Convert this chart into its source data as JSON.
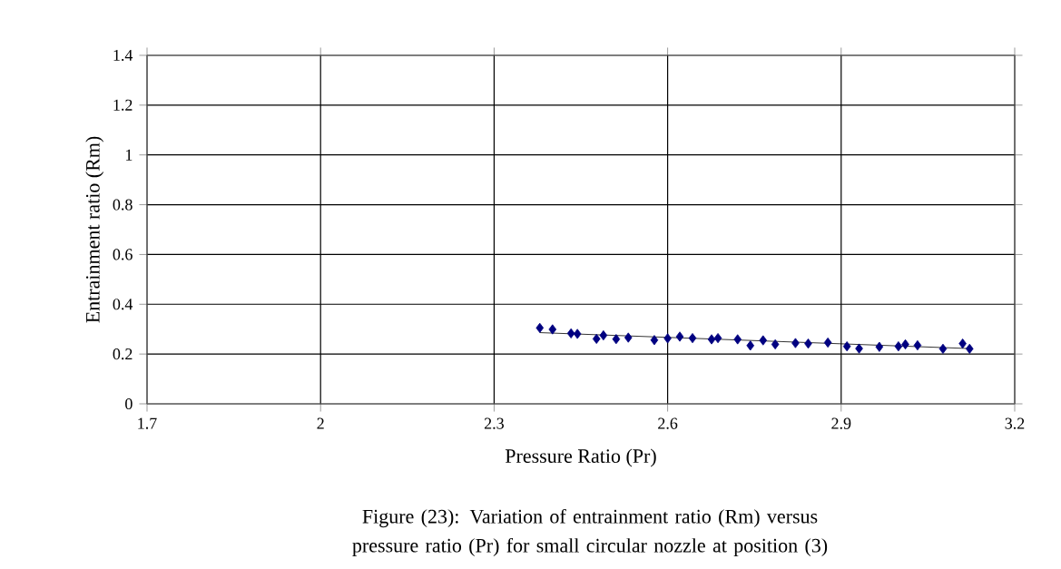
{
  "chart_data": {
    "type": "scatter",
    "xlabel": "Pressure Ratio (Pr)",
    "ylabel": "Entrainment ratio (Rm)",
    "xlim": [
      1.7,
      3.2
    ],
    "ylim": [
      0,
      1.4
    ],
    "xticks": [
      1.7,
      2,
      2.3,
      2.6,
      2.9,
      3.2
    ],
    "yticks": [
      0,
      0.2,
      0.4,
      0.6,
      0.8,
      1,
      1.2,
      1.4
    ],
    "grid": true,
    "annotations": [
      "Figure (23): Variation of entrainment ratio (Rm) versus  pressure ratio (Pr) for small circular nozzle at position (3)"
    ],
    "series": [
      {
        "color": "#000080",
        "marker": "diamond",
        "x": [
          2.379,
          2.401,
          2.433,
          2.444,
          2.477,
          2.489,
          2.511,
          2.532,
          2.577,
          2.6,
          2.621,
          2.643,
          2.676,
          2.687,
          2.721,
          2.743,
          2.765,
          2.786,
          2.821,
          2.843,
          2.877,
          2.91,
          2.931,
          2.966,
          2.999,
          3.011,
          3.032,
          3.076,
          3.11,
          3.122
        ],
        "values": [
          0.305,
          0.299,
          0.283,
          0.281,
          0.261,
          0.275,
          0.26,
          0.266,
          0.256,
          0.263,
          0.27,
          0.264,
          0.259,
          0.264,
          0.259,
          0.234,
          0.255,
          0.239,
          0.244,
          0.242,
          0.246,
          0.231,
          0.222,
          0.229,
          0.231,
          0.239,
          0.235,
          0.221,
          0.242,
          0.221
        ]
      },
      {
        "type": "line",
        "color": "#000000",
        "marker": "none",
        "x": [
          2.379,
          3.122
        ],
        "values": [
          0.286,
          0.222
        ]
      }
    ]
  }
}
